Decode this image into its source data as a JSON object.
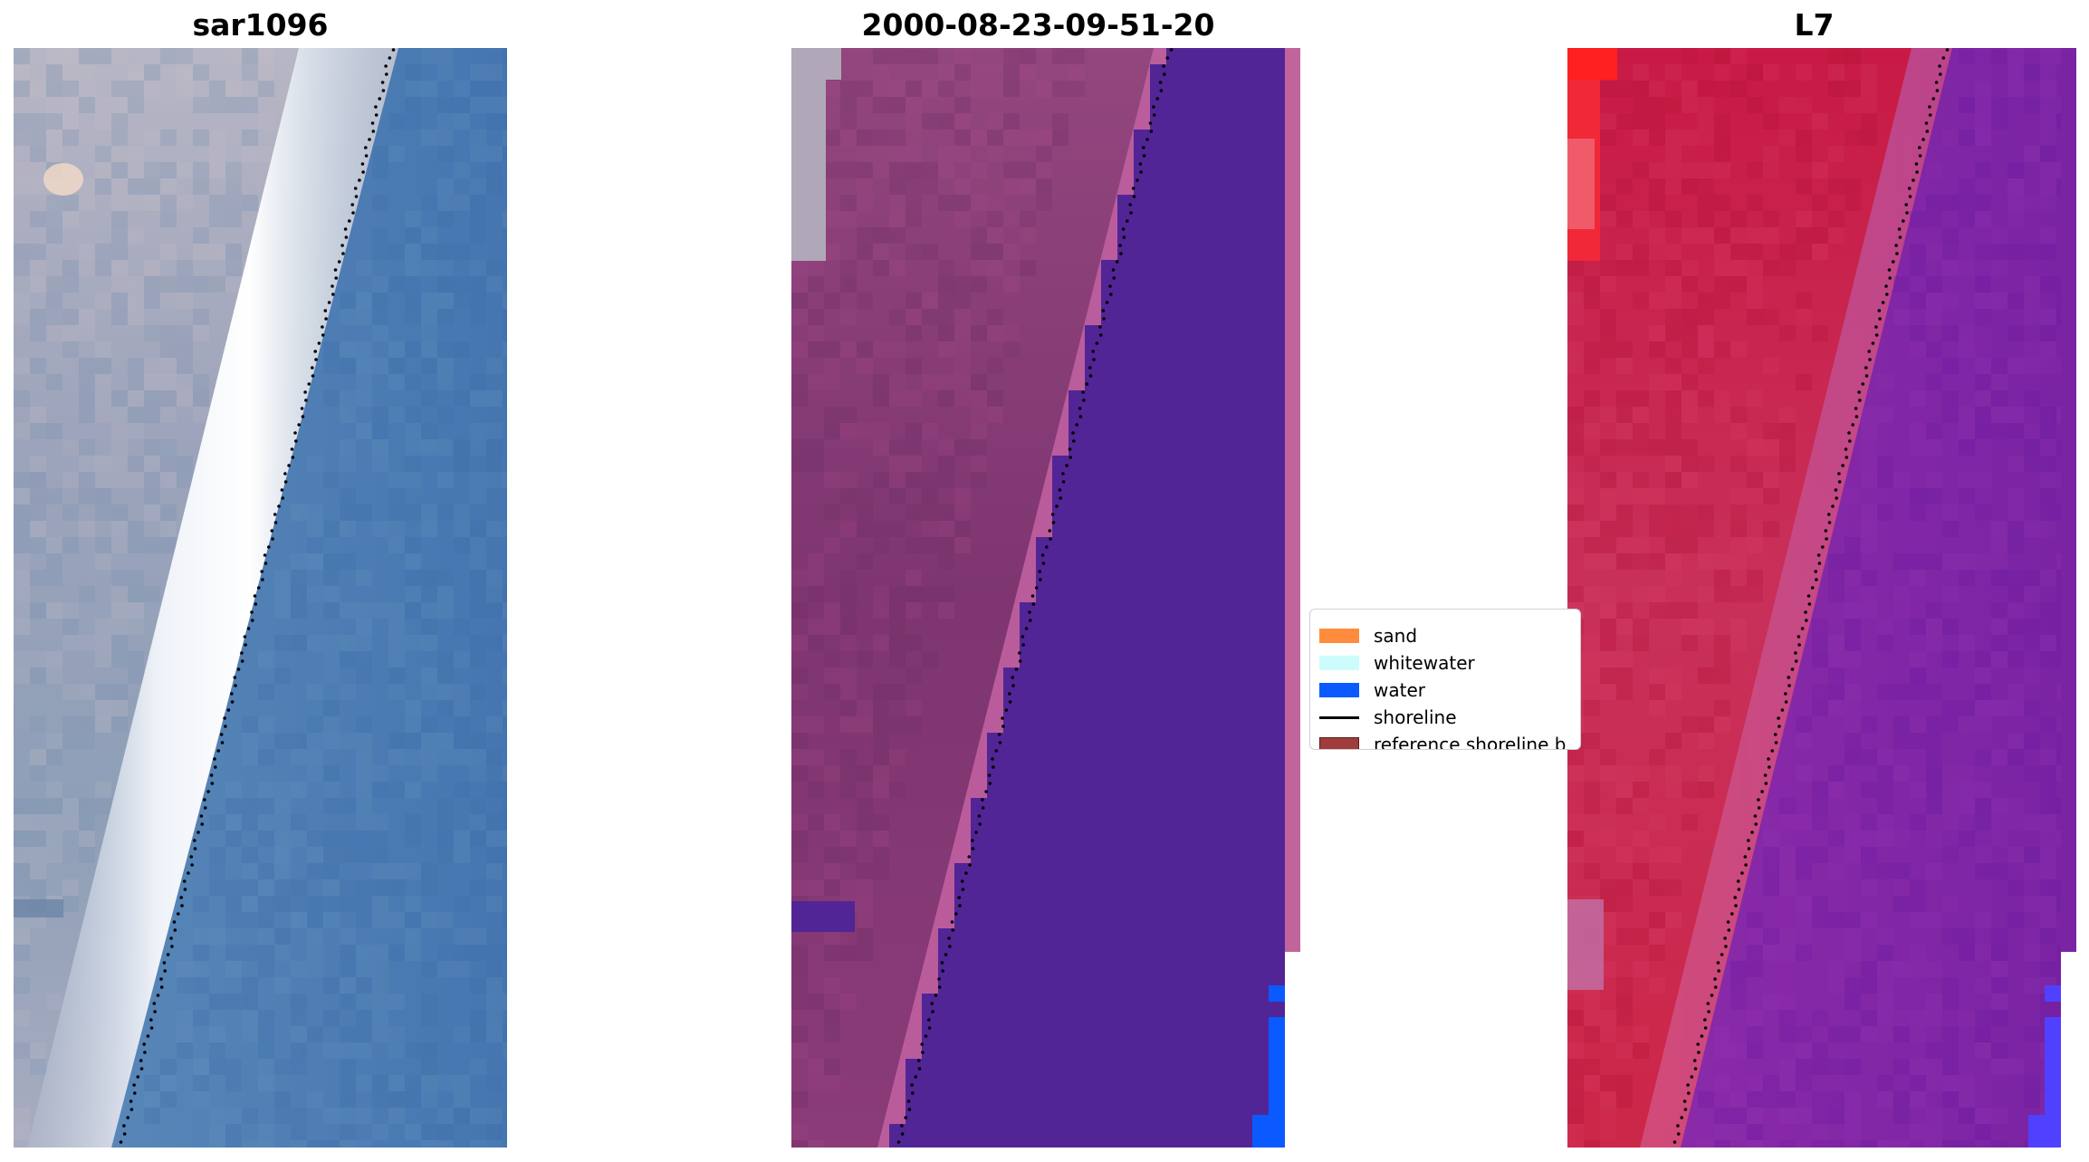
{
  "figure": {
    "panels": [
      {
        "title": "sar1096"
      },
      {
        "title": "2000-08-23-09-51-20"
      },
      {
        "title": "L7"
      }
    ],
    "legend": {
      "items": [
        {
          "label": "sand",
          "kind": "patch",
          "color": "#ff8c3c"
        },
        {
          "label": "whitewater",
          "kind": "patch",
          "color": "#cdfcfc"
        },
        {
          "label": "water",
          "kind": "patch",
          "color": "#0a5aff"
        },
        {
          "label": "shoreline",
          "kind": "line",
          "color": "#000000"
        },
        {
          "label": "reference shoreline b",
          "kind": "patch",
          "color": "#a03c3c",
          "edge": "#5a1e1e"
        }
      ]
    },
    "colors": {
      "rgb_land": "#9fa3b8",
      "rgb_sea": "#4a7ab4",
      "rgb_foam": "#f4f8fc",
      "class_land": "#8a3e78",
      "class_beach": "#c060a0",
      "class_sea": "#522596",
      "class_water": "#0a5aff",
      "class_sand_strip": "#c2649c",
      "fc_land": "#c41840",
      "fc_sea": "#7a22a0",
      "fc_bright_red": "#ff2020",
      "fc_blue": "#5040ff"
    }
  }
}
